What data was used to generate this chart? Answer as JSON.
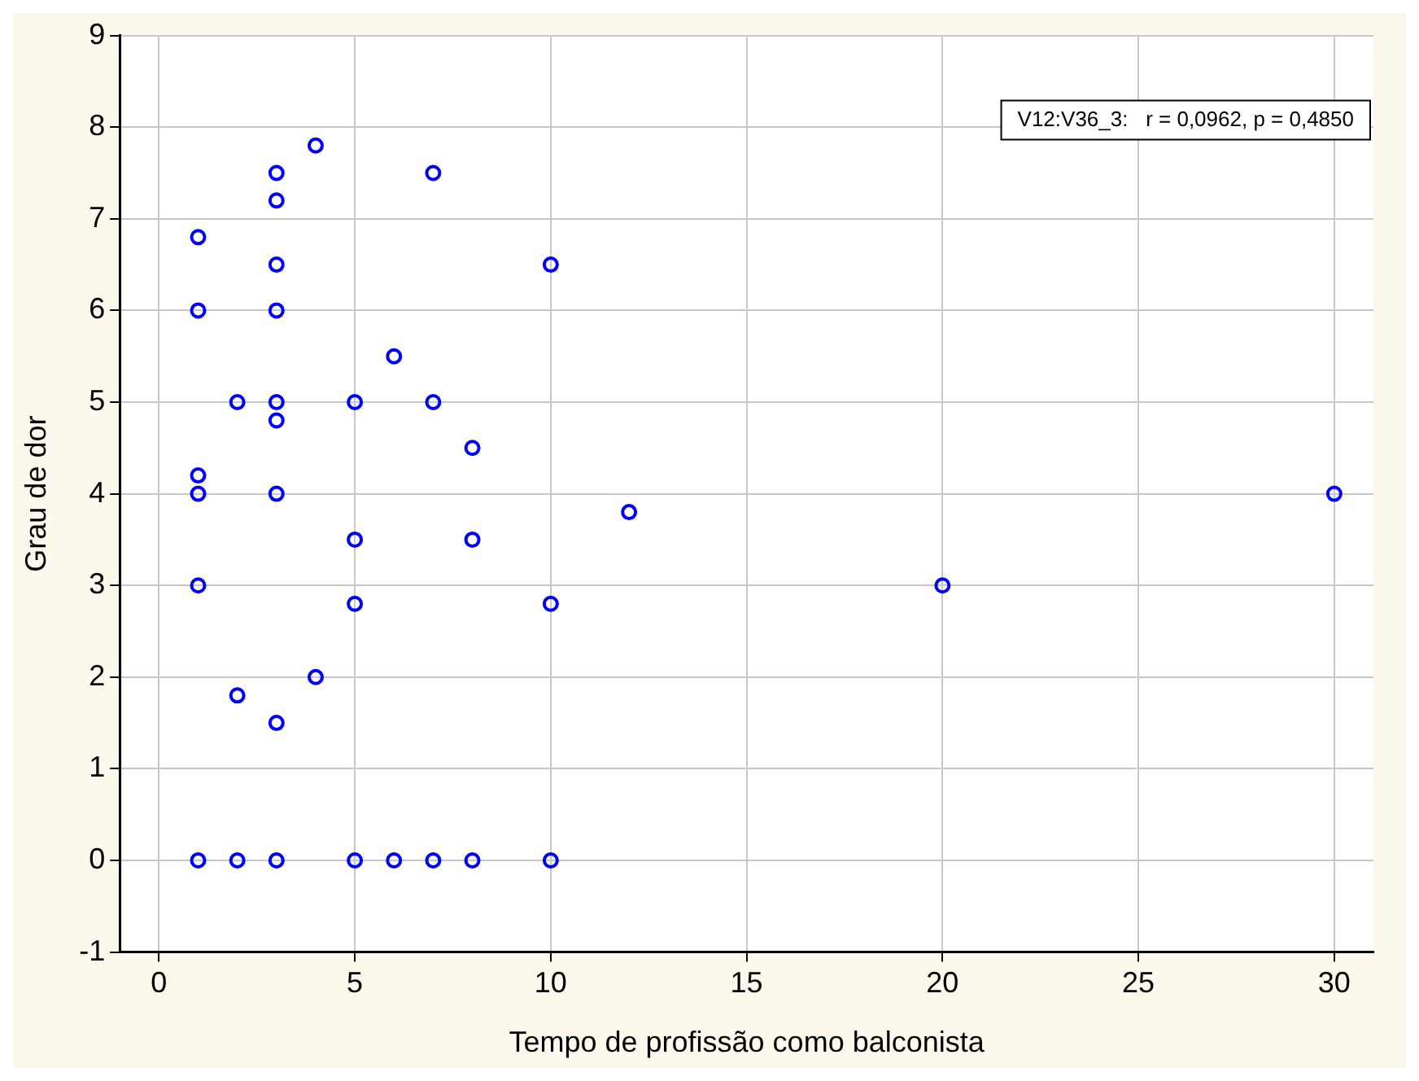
{
  "chart_data": {
    "type": "scatter",
    "xlabel": "Tempo de profissão como balconista",
    "ylabel": "Grau de dor",
    "annotations": [
      "V12:V36_3:   r = 0,0962, p = 0,4850"
    ],
    "x": [
      1,
      1,
      1,
      1,
      1,
      1,
      2,
      2,
      2,
      3,
      3,
      3,
      3,
      3,
      3,
      3,
      3,
      3,
      4,
      4,
      5,
      5,
      5,
      5,
      6,
      6,
      7,
      7,
      7,
      8,
      8,
      8,
      10,
      10,
      10,
      12,
      20,
      30
    ],
    "series": [
      {
        "color": "#0000ff",
        "values": [
          6.8,
          6,
          4.2,
          4,
          3,
          0,
          5,
          1.8,
          0,
          7.5,
          7.2,
          6.5,
          6,
          5,
          4.8,
          4,
          1.5,
          0,
          7.8,
          2,
          5,
          3.5,
          2.8,
          0,
          5.5,
          0,
          7.5,
          5,
          0,
          4.5,
          3.5,
          0,
          6.5,
          2.8,
          0,
          3.8,
          3,
          4
        ]
      }
    ],
    "xlim": [
      -1,
      31
    ],
    "xticks": [
      0,
      5,
      10,
      15,
      20,
      25,
      30
    ],
    "ylim": [
      -1,
      9
    ],
    "yticks": [
      -1,
      0,
      1,
      2,
      3,
      4,
      5,
      6,
      7,
      8,
      9
    ],
    "grid": true,
    "legend": false,
    "marker": "circle"
  }
}
